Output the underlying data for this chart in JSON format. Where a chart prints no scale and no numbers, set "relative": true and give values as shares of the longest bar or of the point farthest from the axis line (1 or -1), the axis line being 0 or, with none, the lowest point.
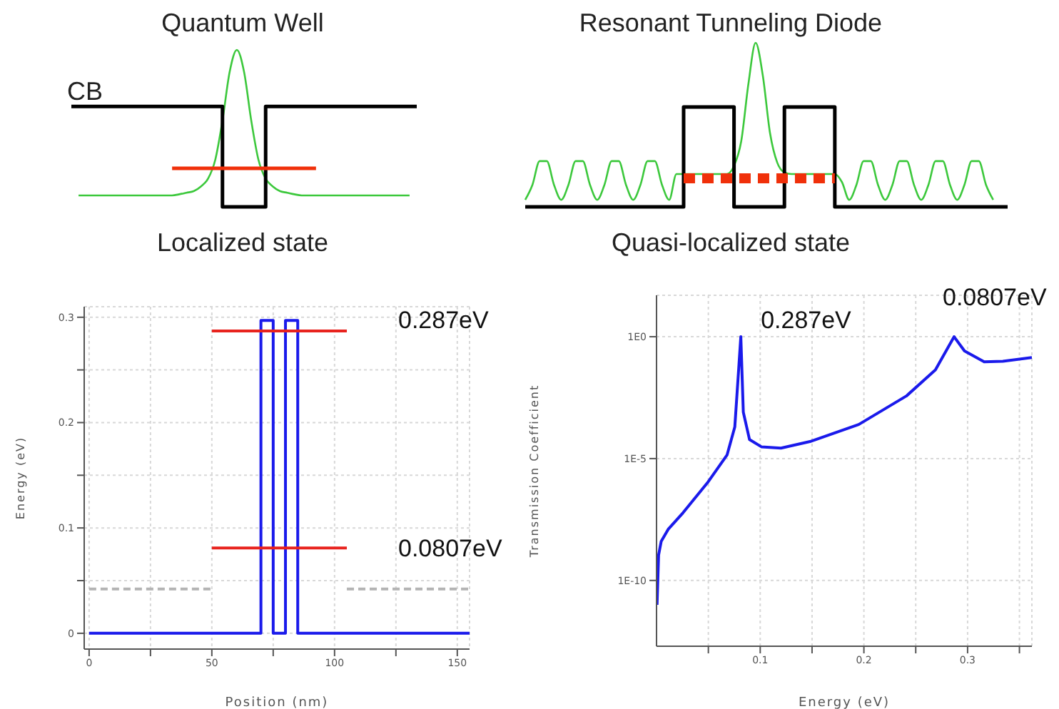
{
  "chart_data": [
    {
      "type": "line",
      "relative": true,
      "title": "Quantum Well",
      "annotations": [
        "CB",
        "Localized state"
      ],
      "categories": [
        null,
        null,
        null,
        null,
        null,
        null,
        null,
        null,
        null,
        null,
        null,
        null,
        null,
        null,
        null,
        null,
        null,
        null,
        null,
        null,
        null,
        null,
        null,
        null,
        null,
        null,
        null,
        null,
        null,
        null,
        null,
        null,
        null,
        null,
        null,
        null,
        null,
        null,
        null,
        null,
        null,
        null,
        null,
        null,
        null,
        null,
        null,
        null,
        null
      ],
      "series": [
        {
          "type": "line",
          "color": "#3cc83c",
          "values": [
            null,
            0.073,
            0.073,
            0.073,
            0.073,
            0.073,
            0.073,
            0.073,
            0.073,
            0.073,
            0.073,
            0.073,
            0.073,
            0.073,
            0.073,
            0.08,
            0.09,
            0.1,
            0.13,
            0.18,
            0.3,
            0.55,
            0.86,
            1,
            0.86,
            0.55,
            0.3,
            0.18,
            0.13,
            0.1,
            0.09,
            0.08,
            0.073,
            0.073,
            0.073,
            0.073,
            0.073,
            0.073,
            0.073,
            0.073,
            0.073,
            0.073,
            0.073,
            0.073,
            0.073,
            0.073,
            0.073,
            0.073,
            null
          ]
        },
        {
          "type": "step",
          "color": "#000000",
          "values": [
            0.64,
            0.64,
            0.64,
            0.64,
            0.64,
            0.64,
            0.64,
            0.64,
            0.64,
            0.64,
            0.64,
            0.64,
            0.64,
            0.64,
            0.64,
            0.64,
            0.64,
            0.64,
            0.64,
            0.64,
            0.64,
            0,
            0,
            0,
            0,
            0,
            0,
            0.64,
            0.64,
            0.64,
            0.64,
            0.64,
            0.64,
            0.64,
            0.64,
            0.64,
            0.64,
            0.64,
            0.64,
            0.64,
            0.64,
            0.64,
            0.64,
            0.64,
            0.64,
            0.64,
            0.64,
            0.64,
            0.64
          ]
        },
        {
          "type": "line",
          "color": "#f0300a",
          "values": [
            null,
            null,
            null,
            null,
            null,
            null,
            null,
            null,
            null,
            null,
            null,
            null,
            null,
            null,
            0.245,
            0.245,
            0.245,
            0.245,
            0.245,
            0.245,
            0.245,
            0.245,
            0.245,
            0.245,
            0.245,
            0.245,
            0.245,
            0.245,
            0.245,
            0.245,
            0.245,
            0.245,
            0.245,
            0.245,
            0.245,
            null,
            null,
            null,
            null,
            null,
            null,
            null,
            null,
            null,
            null,
            null,
            null,
            null,
            null
          ]
        }
      ]
    },
    {
      "type": "line",
      "relative": true,
      "title": "Resonant Tunneling Diode",
      "annotations": [
        "Quasi-localized state"
      ],
      "categories": [
        null,
        null,
        null,
        null,
        null,
        null,
        null,
        null,
        null,
        null,
        null,
        null,
        null,
        null,
        null,
        null,
        null,
        null,
        null,
        null,
        null,
        null,
        null,
        null,
        null,
        null,
        null,
        null,
        null,
        null,
        null,
        null,
        null,
        null,
        null,
        null,
        null,
        null,
        null,
        null,
        null,
        null,
        null,
        null,
        null,
        null,
        null,
        null,
        null,
        null,
        null,
        null,
        null,
        null,
        null,
        null,
        null,
        null,
        null,
        null,
        null,
        null,
        null,
        null,
        null,
        null,
        null,
        null
      ],
      "series": [
        {
          "type": "line",
          "color": "#3cc83c",
          "values": [
            0.043,
            0.134,
            0.279,
            0.279,
            0.134,
            0.043,
            0.134,
            0.279,
            0.279,
            0.134,
            0.043,
            0.134,
            0.279,
            0.279,
            0.134,
            0.043,
            0.134,
            0.279,
            0.279,
            0.134,
            0.043,
            0.2,
            0.2,
            0.2,
            0.2,
            0.2,
            0.2,
            0.2,
            0.2,
            0.25,
            0.4,
            0.75,
            1,
            0.8,
            0.45,
            0.27,
            0.21,
            0.2,
            0.2,
            0.2,
            0.2,
            0.2,
            0.2,
            0.2,
            0.15,
            0.043,
            0.134,
            0.279,
            0.279,
            0.134,
            0.043,
            0.134,
            0.279,
            0.279,
            0.134,
            0.043,
            0.134,
            0.279,
            0.279,
            0.134,
            0.043,
            0.134,
            0.279,
            0.279,
            0.134,
            0.043,
            null,
            null
          ]
        },
        {
          "type": "step",
          "color": "#000000",
          "values": [
            0,
            0,
            0,
            0,
            0,
            0,
            0,
            0,
            0,
            0,
            0,
            0,
            0,
            0,
            0,
            0,
            0,
            0,
            0,
            0,
            0,
            0,
            0.609,
            0.609,
            0.609,
            0.609,
            0.609,
            0.609,
            0.609,
            0,
            0,
            0,
            0,
            0,
            0,
            0,
            0.609,
            0.609,
            0.609,
            0.609,
            0.609,
            0.609,
            0.609,
            0,
            0,
            0,
            0,
            0,
            0,
            0,
            0,
            0,
            0,
            0,
            0,
            0,
            0,
            0,
            0,
            0,
            0,
            0,
            0,
            0,
            0,
            0,
            0,
            0
          ]
        },
        {
          "type": "line",
          "color": "#f0300a",
          "line_style": "dotted",
          "values": [
            null,
            null,
            null,
            null,
            null,
            null,
            null,
            null,
            null,
            null,
            null,
            null,
            null,
            null,
            null,
            null,
            null,
            null,
            null,
            null,
            null,
            null,
            0.174,
            0.174,
            0.174,
            0.174,
            0.174,
            0.174,
            0.174,
            0.174,
            0.174,
            0.174,
            0.174,
            0.174,
            0.174,
            0.174,
            0.174,
            0.174,
            0.174,
            0.174,
            0.174,
            0.174,
            0.174,
            0.174,
            null,
            null,
            null,
            null,
            null,
            null,
            null,
            null,
            null,
            null,
            null,
            null,
            null,
            null,
            null,
            null,
            null,
            null,
            null,
            null,
            null,
            null,
            null,
            null
          ]
        }
      ]
    },
    {
      "type": "line",
      "xlabel": "Position (nm)",
      "ylabel": "Energy (eV)",
      "xlim": [
        -2,
        155
      ],
      "ylim": [
        -0.015,
        0.31
      ],
      "xticks": [
        0,
        {
          "value": 25,
          "label": null
        },
        50,
        {
          "value": 75,
          "label": null
        },
        100,
        {
          "value": 125,
          "label": null
        },
        150
      ],
      "yticks": [
        0,
        {
          "value": 0.05,
          "label": null
        },
        0.1,
        {
          "value": 0.15,
          "label": null
        },
        0.2,
        {
          "value": 0.25,
          "label": null
        },
        0.3
      ],
      "grid": true,
      "series": [
        {
          "color": "#1a1aeb",
          "x": [
            0,
            70,
            70,
            75,
            75,
            80,
            80,
            85,
            85,
            155
          ],
          "values": [
            0,
            0,
            0.297,
            0.297,
            0,
            0,
            0.297,
            0.297,
            0,
            0
          ]
        },
        {
          "color": "#e8231e",
          "x": [
            50,
            105
          ],
          "values": [
            0.287,
            0.287
          ]
        },
        {
          "color": "#e8231e",
          "x": [
            50,
            105
          ],
          "values": [
            0.081,
            0.081
          ]
        },
        {
          "color": "#b4b4b4",
          "line_style": "dashed",
          "x": [
            0,
            50,
            77,
            105,
            155
          ],
          "values": [
            0.042,
            0.042,
            null,
            0.042,
            0.042
          ]
        }
      ],
      "annotations": [
        {
          "text": "0.287eV",
          "x": 105,
          "y": 0.287
        },
        {
          "text": "0.0807eV",
          "x": 105,
          "y": 0.081
        }
      ]
    },
    {
      "type": "line",
      "xlabel": "Energy (eV)",
      "ylabel": "Transmission Coefficient",
      "log": "y",
      "xlim": [
        0,
        0.362
      ],
      "ylim": [
        2e-13,
        50
      ],
      "xticks": [
        {
          "value": 0.05,
          "label": null
        },
        0.1,
        {
          "value": 0.15,
          "label": null
        },
        0.2,
        {
          "value": 0.25,
          "label": null
        },
        0.3,
        {
          "value": 0.35,
          "label": null
        }
      ],
      "yticks": [
        {
          "value": 1e-10,
          "label": "1E-10"
        },
        {
          "value": 1e-05,
          "label": "1E-5"
        },
        {
          "value": 1,
          "label": "1E0"
        }
      ],
      "grid": true,
      "series": [
        {
          "color": "#1a1aeb",
          "x": [
            0.0005,
            0.002,
            0.0045,
            0.0115,
            0.0256,
            0.049,
            0.068,
            0.0755,
            0.0795,
            0.0813,
            0.0837,
            0.0897,
            0.1014,
            0.12,
            0.148,
            0.195,
            0.241,
            0.269,
            0.287,
            0.297,
            0.316,
            0.334,
            0.362
          ],
          "values": [
            1e-11,
            1.1e-09,
            4e-09,
            1.3e-08,
            6e-08,
            1e-06,
            1.4e-05,
            0.0002,
            0.07,
            1,
            0.0008,
            6e-05,
            3e-05,
            2.7e-05,
            5e-05,
            0.00025,
            0.0037,
            0.044,
            1,
            0.26,
            0.093,
            0.098,
            0.14
          ]
        }
      ],
      "annotations": [
        {
          "text": "0.287eV",
          "x": 0.0813,
          "y": 1
        },
        {
          "text": "0.0807eV",
          "x": 0.287,
          "y": 1
        }
      ]
    }
  ]
}
